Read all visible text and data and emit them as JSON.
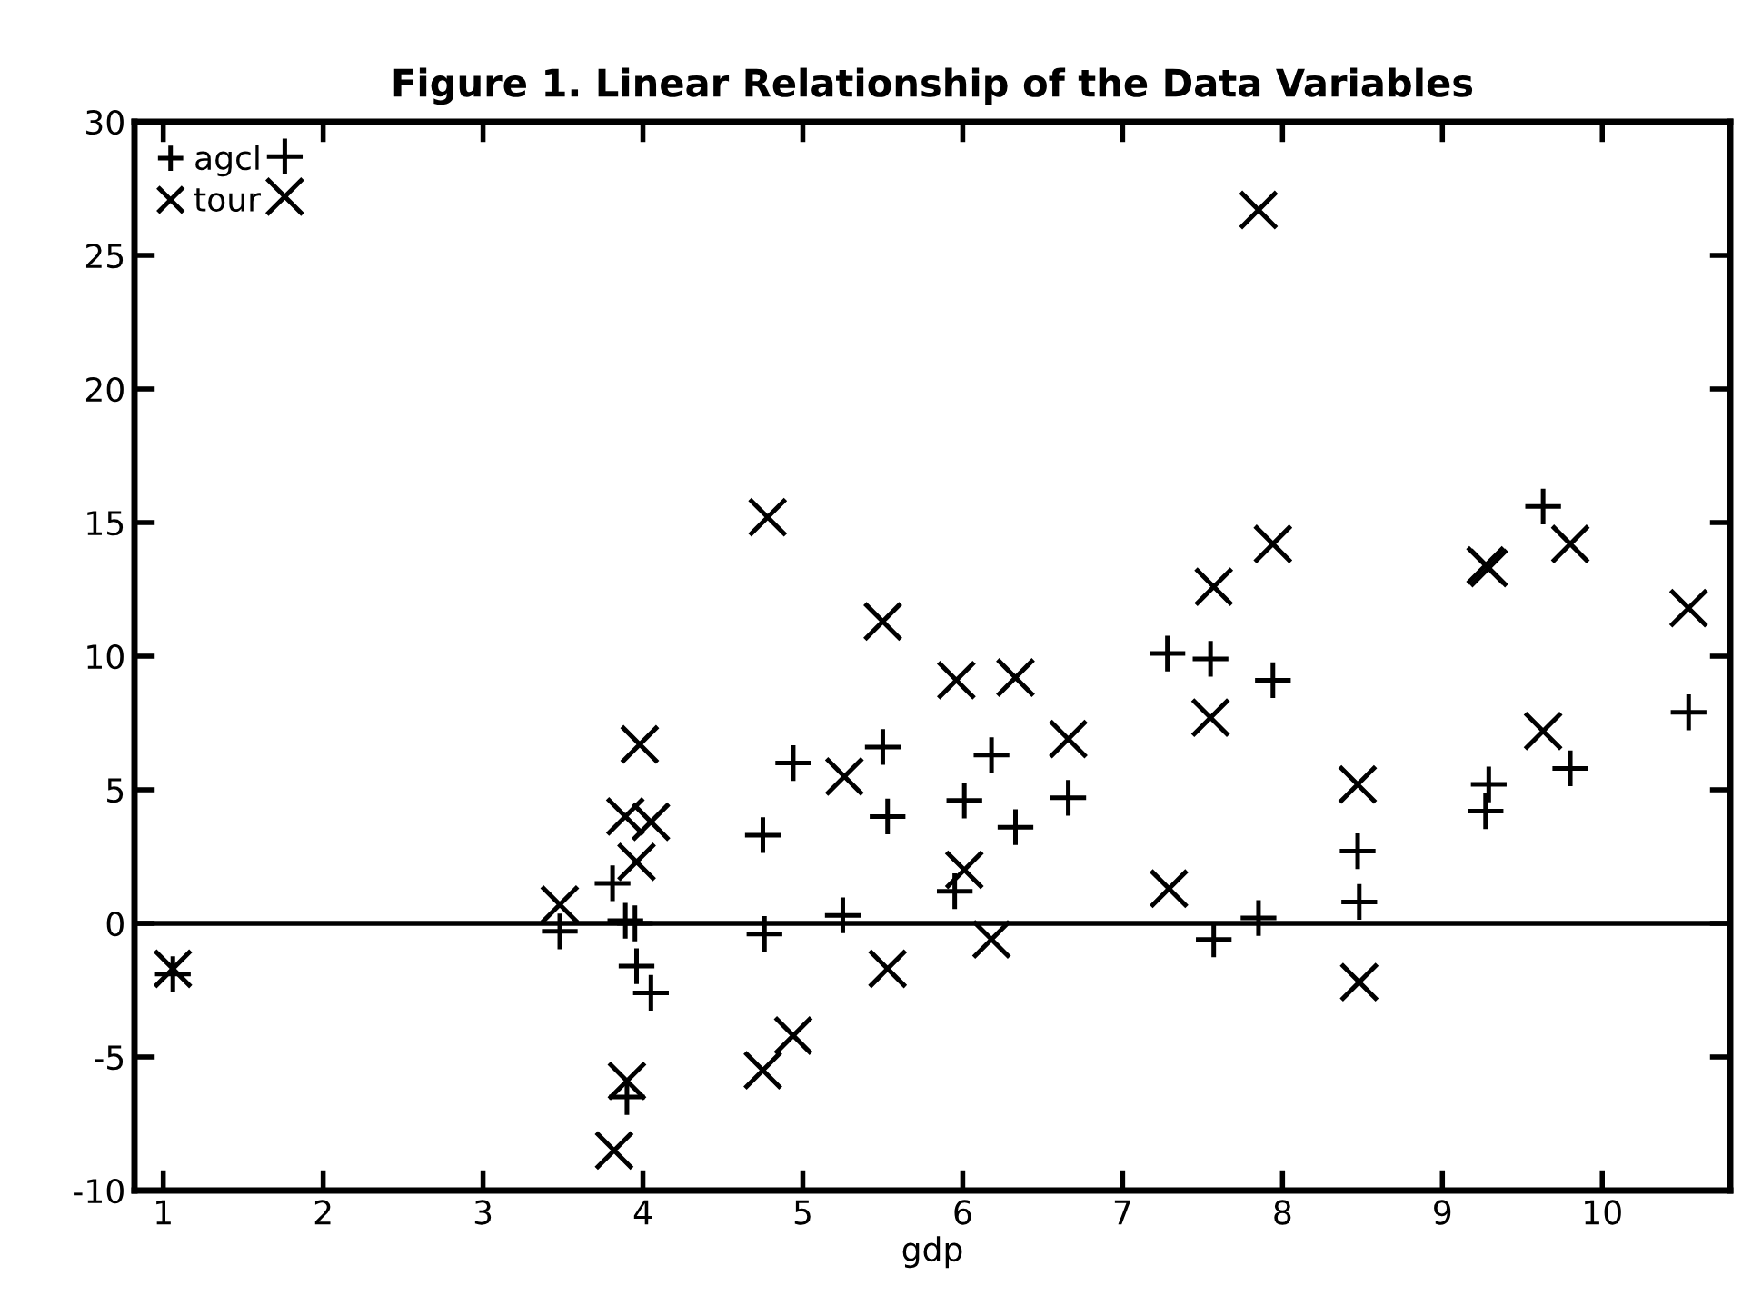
{
  "chart_data": {
    "type": "scatter",
    "title": "Figure 1. Linear Relationship of the Data Variables",
    "xlabel": "gdp",
    "series": [
      {
        "name": "agcl",
        "color": "#000000",
        "marker": "plus",
        "x": [
          1.06,
          1.76,
          3.48,
          3.81,
          3.89,
          3.9,
          3.95,
          3.96,
          4.05,
          4.75,
          4.76,
          4.94,
          5.25,
          5.5,
          5.53,
          5.95,
          6.01,
          6.18,
          6.33,
          6.66,
          7.28,
          7.55,
          7.57,
          7.85,
          7.94,
          8.47,
          8.48,
          9.27,
          9.29,
          9.63,
          9.8,
          10.54
        ],
        "values": [
          -1.9,
          28.7,
          -0.3,
          1.5,
          0.1,
          -6.5,
          0.0,
          -1.6,
          -2.6,
          3.3,
          -0.4,
          6.0,
          0.3,
          6.6,
          4.0,
          1.2,
          4.6,
          6.3,
          3.6,
          4.7,
          10.1,
          9.9,
          -0.6,
          0.2,
          9.1,
          2.7,
          0.8,
          4.2,
          5.2,
          15.6,
          5.8,
          7.9
        ]
      },
      {
        "name": "tour",
        "color": "#000000",
        "marker": "cross",
        "x": [
          1.06,
          1.76,
          3.48,
          3.82,
          3.89,
          3.9,
          3.96,
          3.98,
          4.05,
          4.75,
          4.78,
          4.94,
          5.26,
          5.5,
          5.53,
          5.96,
          6.01,
          6.18,
          6.33,
          6.66,
          7.29,
          7.55,
          7.57,
          7.85,
          7.94,
          8.47,
          8.48,
          9.27,
          9.29,
          9.63,
          9.8,
          10.54
        ],
        "values": [
          -1.7,
          27.2,
          0.7,
          -8.5,
          4.0,
          -5.9,
          2.3,
          6.7,
          3.8,
          -5.5,
          15.2,
          -4.2,
          5.5,
          11.3,
          -1.7,
          9.1,
          2.0,
          -0.6,
          9.2,
          6.9,
          1.3,
          7.7,
          12.6,
          26.7,
          14.2,
          5.2,
          -2.2,
          13.4,
          13.3,
          7.2,
          14.2,
          11.8
        ]
      }
    ],
    "xlim": [
      0.82,
      10.8
    ],
    "ylim": [
      -10,
      30
    ],
    "xticks": [
      1,
      2,
      3,
      4,
      5,
      6,
      7,
      8,
      9,
      10
    ],
    "yticks": [
      -10,
      -5,
      0,
      5,
      10,
      15,
      20,
      25,
      30
    ],
    "ref_lines": [
      {
        "axis": "y",
        "value": 0,
        "color": "#000000"
      }
    ],
    "grid": false,
    "legend": "top left"
  }
}
